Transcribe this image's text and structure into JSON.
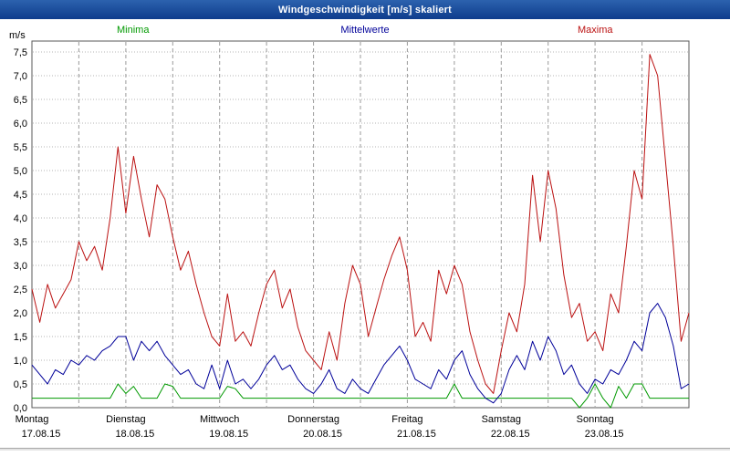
{
  "window": {
    "title": "Windgeschwindigkeit [m/s] skaliert"
  },
  "legend": {
    "items": [
      {
        "label": "Minima",
        "color": "#009900"
      },
      {
        "label": "Mittelwerte",
        "color": "#000099"
      },
      {
        "label": "Maxima",
        "color": "#bb1111"
      }
    ]
  },
  "chart_data": {
    "type": "line",
    "title": "Windgeschwindigkeit [m/s] skaliert",
    "ylabel": "m/s",
    "ylim": [
      0,
      7.5
    ],
    "y_tick_step": 0.5,
    "y_tick_labels": [
      "0,0",
      "0,5",
      "1,0",
      "1,5",
      "2,0",
      "2,5",
      "3,0",
      "3,5",
      "4,0",
      "4,5",
      "5,0",
      "5,5",
      "6,0",
      "6,5",
      "7,0",
      "7,5"
    ],
    "grid": true,
    "legend_position": "top",
    "x_unit": "hours",
    "x_range_hours": [
      0,
      168
    ],
    "x_step_hours": 2,
    "x_gridline_interval_hours": 12,
    "x_day_labels": [
      {
        "day": "Montag",
        "date": "17.08.15"
      },
      {
        "day": "Dienstag",
        "date": "18.08.15"
      },
      {
        "day": "Mittwoch",
        "date": "19.08.15"
      },
      {
        "day": "Donnerstag",
        "date": "20.08.15"
      },
      {
        "day": "Freitag",
        "date": "21.08.15"
      },
      {
        "day": "Samstag",
        "date": "22.08.15"
      },
      {
        "day": "Sonntag",
        "date": "23.08.15"
      }
    ],
    "series": [
      {
        "name": "Minima",
        "color": "#009900",
        "values": [
          0.2,
          0.2,
          0.2,
          0.2,
          0.2,
          0.2,
          0.2,
          0.2,
          0.2,
          0.2,
          0.2,
          0.5,
          0.3,
          0.45,
          0.2,
          0.2,
          0.2,
          0.5,
          0.45,
          0.2,
          0.2,
          0.2,
          0.2,
          0.2,
          0.2,
          0.45,
          0.4,
          0.2,
          0.2,
          0.2,
          0.2,
          0.2,
          0.2,
          0.2,
          0.2,
          0.2,
          0.2,
          0.2,
          0.2,
          0.2,
          0.2,
          0.2,
          0.2,
          0.2,
          0.2,
          0.2,
          0.2,
          0.2,
          0.2,
          0.2,
          0.2,
          0.2,
          0.2,
          0.2,
          0.5,
          0.2,
          0.2,
          0.2,
          0.2,
          0.2,
          0.2,
          0.2,
          0.2,
          0.2,
          0.2,
          0.2,
          0.2,
          0.2,
          0.2,
          0.2,
          0.0,
          0.2,
          0.5,
          0.2,
          0.0,
          0.45,
          0.2,
          0.5,
          0.5,
          0.2,
          0.2,
          0.2,
          0.2,
          0.2,
          0.2
        ]
      },
      {
        "name": "Mittelwerte",
        "color": "#000099",
        "values": [
          0.9,
          0.7,
          0.5,
          0.8,
          0.7,
          1.0,
          0.9,
          1.1,
          1.0,
          1.2,
          1.3,
          1.5,
          1.5,
          1.0,
          1.4,
          1.2,
          1.4,
          1.1,
          0.9,
          0.7,
          0.8,
          0.5,
          0.4,
          0.9,
          0.4,
          1.0,
          0.5,
          0.6,
          0.4,
          0.6,
          0.9,
          1.1,
          0.8,
          0.9,
          0.6,
          0.4,
          0.3,
          0.5,
          0.8,
          0.4,
          0.3,
          0.6,
          0.4,
          0.3,
          0.6,
          0.9,
          1.1,
          1.3,
          1.0,
          0.6,
          0.5,
          0.4,
          0.8,
          0.6,
          1.0,
          1.2,
          0.7,
          0.4,
          0.2,
          0.1,
          0.3,
          0.8,
          1.1,
          0.8,
          1.4,
          1.0,
          1.5,
          1.2,
          0.7,
          0.9,
          0.5,
          0.3,
          0.6,
          0.5,
          0.8,
          0.7,
          1.0,
          1.4,
          1.2,
          2.0,
          2.2,
          1.9,
          1.3,
          0.4,
          0.5
        ]
      },
      {
        "name": "Maxima",
        "color": "#bb1111",
        "values": [
          2.5,
          1.8,
          2.6,
          2.1,
          2.4,
          2.7,
          3.5,
          3.1,
          3.4,
          2.9,
          4.0,
          5.5,
          4.1,
          5.3,
          4.4,
          3.6,
          4.7,
          4.4,
          3.6,
          2.9,
          3.3,
          2.6,
          2.0,
          1.5,
          1.3,
          2.4,
          1.4,
          1.6,
          1.3,
          2.0,
          2.6,
          2.9,
          2.1,
          2.5,
          1.7,
          1.2,
          1.0,
          0.8,
          1.6,
          1.0,
          2.2,
          3.0,
          2.6,
          1.5,
          2.1,
          2.7,
          3.2,
          3.6,
          2.9,
          1.5,
          1.8,
          1.4,
          2.9,
          2.4,
          3.0,
          2.6,
          1.6,
          1.0,
          0.5,
          0.3,
          1.2,
          2.0,
          1.6,
          2.6,
          4.9,
          3.5,
          5.0,
          4.2,
          2.8,
          1.9,
          2.2,
          1.4,
          1.6,
          1.2,
          2.4,
          2.0,
          3.4,
          5.0,
          4.4,
          7.45,
          7.0,
          5.2,
          3.4,
          1.4,
          2.0
        ]
      }
    ]
  }
}
